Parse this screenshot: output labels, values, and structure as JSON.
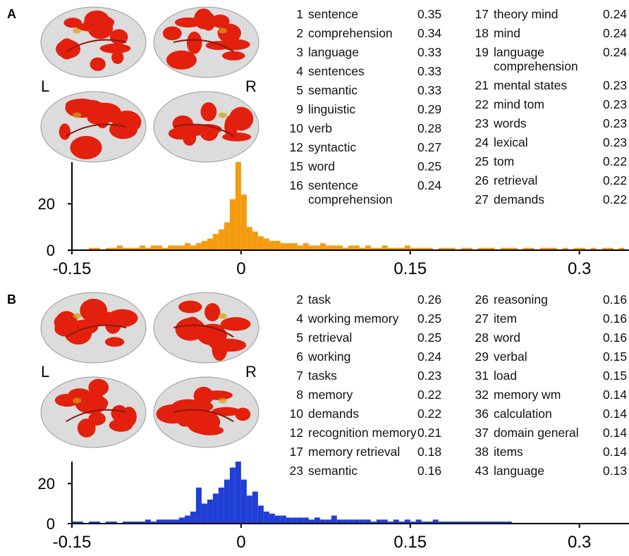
{
  "panels": [
    {
      "label": "A",
      "hemispheres": [
        "L",
        "R"
      ],
      "columns": [
        [
          {
            "rank": 1,
            "term": "sentence",
            "value": 0.35
          },
          {
            "rank": 2,
            "term": "comprehension",
            "value": 0.34
          },
          {
            "rank": 3,
            "term": "language",
            "value": 0.33
          },
          {
            "rank": 4,
            "term": "sentences",
            "value": 0.33
          },
          {
            "rank": 5,
            "term": "semantic",
            "value": 0.33
          },
          {
            "rank": 9,
            "term": "linguistic",
            "value": 0.29
          },
          {
            "rank": 10,
            "term": "verb",
            "value": 0.28
          },
          {
            "rank": 12,
            "term": "syntactic",
            "value": 0.27
          },
          {
            "rank": 15,
            "term": "word",
            "value": 0.25
          },
          {
            "rank": 16,
            "term": "sentence comprehension",
            "value": 0.24
          }
        ],
        [
          {
            "rank": 17,
            "term": "theory mind",
            "value": 0.24
          },
          {
            "rank": 18,
            "term": "mind",
            "value": 0.24
          },
          {
            "rank": 19,
            "term": "language comprehension",
            "value": 0.24
          },
          {
            "rank": 21,
            "term": "mental states",
            "value": 0.23
          },
          {
            "rank": 22,
            "term": "mind tom",
            "value": 0.23
          },
          {
            "rank": 23,
            "term": "words",
            "value": 0.23
          },
          {
            "rank": 24,
            "term": "lexical",
            "value": 0.23
          },
          {
            "rank": 25,
            "term": "tom",
            "value": 0.22
          },
          {
            "rank": 26,
            "term": "retrieval",
            "value": 0.22
          },
          {
            "rank": 27,
            "term": "demands",
            "value": 0.22
          }
        ]
      ]
    },
    {
      "label": "B",
      "hemispheres": [
        "L",
        "R"
      ],
      "columns": [
        [
          {
            "rank": 2,
            "term": "task",
            "value": 0.26
          },
          {
            "rank": 4,
            "term": "working memory",
            "value": 0.25
          },
          {
            "rank": 5,
            "term": "retrieval",
            "value": 0.25
          },
          {
            "rank": 6,
            "term": "working",
            "value": 0.24
          },
          {
            "rank": 7,
            "term": "tasks",
            "value": 0.23
          },
          {
            "rank": 8,
            "term": "memory",
            "value": 0.22
          },
          {
            "rank": 10,
            "term": "demands",
            "value": 0.22
          },
          {
            "rank": 12,
            "term": "recognition memory",
            "value": 0.21
          },
          {
            "rank": 17,
            "term": "memory retrieval",
            "value": 0.18
          },
          {
            "rank": 23,
            "term": "semantic",
            "value": 0.16
          }
        ],
        [
          {
            "rank": 26,
            "term": "reasoning",
            "value": 0.16
          },
          {
            "rank": 27,
            "term": "item",
            "value": 0.16
          },
          {
            "rank": 28,
            "term": "word",
            "value": 0.16
          },
          {
            "rank": 29,
            "term": "verbal",
            "value": 0.15
          },
          {
            "rank": 31,
            "term": "load",
            "value": 0.15
          },
          {
            "rank": 32,
            "term": "memory wm",
            "value": 0.14
          },
          {
            "rank": 36,
            "term": "calculation",
            "value": 0.14
          },
          {
            "rank": 37,
            "term": "domain general",
            "value": 0.14
          },
          {
            "rank": 38,
            "term": "items",
            "value": 0.14
          },
          {
            "rank": 43,
            "term": "language",
            "value": 0.13
          }
        ]
      ]
    }
  ],
  "chart_data": [
    {
      "type": "histogram",
      "color": "#f59b0f",
      "bins": [
        -0.15,
        -0.145,
        -0.14,
        -0.135,
        -0.13,
        -0.125,
        -0.12,
        -0.115,
        -0.11,
        -0.105,
        -0.1,
        -0.095,
        -0.09,
        -0.085,
        -0.08,
        -0.075,
        -0.07,
        -0.065,
        -0.06,
        -0.055,
        -0.05,
        -0.045,
        -0.04,
        -0.035,
        -0.03,
        -0.025,
        -0.02,
        -0.015,
        -0.01,
        -0.005,
        0,
        0.005,
        0.01,
        0.015,
        0.02,
        0.025,
        0.03,
        0.035,
        0.04,
        0.045,
        0.05,
        0.055,
        0.06,
        0.065,
        0.07,
        0.075,
        0.08,
        0.085,
        0.09,
        0.095,
        0.1,
        0.105,
        0.11,
        0.115,
        0.12,
        0.125,
        0.13,
        0.135,
        0.14,
        0.145,
        0.15,
        0.155,
        0.16,
        0.165,
        0.17,
        0.175,
        0.18,
        0.185,
        0.19,
        0.195,
        0.2,
        0.205,
        0.21,
        0.215,
        0.22,
        0.225,
        0.23,
        0.235,
        0.24,
        0.245,
        0.25,
        0.255,
        0.26,
        0.265,
        0.27,
        0.275,
        0.28,
        0.285,
        0.29,
        0.295,
        0.3,
        0.305,
        0.31,
        0.315,
        0.32,
        0.325,
        0.33,
        0.335,
        0.34
      ],
      "values": [
        0,
        0,
        0,
        1,
        1,
        0,
        1,
        1,
        2,
        1,
        1,
        1,
        2,
        1,
        2,
        2,
        1,
        2,
        2,
        2,
        3,
        2,
        3,
        4,
        5,
        7,
        9,
        12,
        22,
        38,
        24,
        10,
        8,
        6,
        5,
        4,
        4,
        3,
        3,
        3,
        2,
        3,
        2,
        2,
        3,
        2,
        2,
        2,
        1,
        2,
        2,
        1,
        2,
        1,
        1,
        2,
        1,
        1,
        1,
        2,
        1,
        1,
        1,
        1,
        0,
        1,
        1,
        1,
        0,
        1,
        1,
        0,
        1,
        1,
        1,
        0,
        1,
        1,
        1,
        0,
        1,
        1,
        0,
        1,
        1,
        1,
        0,
        1,
        0,
        1,
        1,
        0,
        1,
        0,
        1,
        1,
        0,
        1
      ],
      "xlim": [
        -0.15,
        0.344
      ],
      "xticks": [
        -0.15,
        0,
        0.15,
        0.3
      ],
      "ylim": [
        0,
        38
      ],
      "yticks": [
        0,
        20
      ]
    },
    {
      "type": "histogram",
      "color": "#1f3fd6",
      "bins": [
        -0.15,
        -0.145,
        -0.14,
        -0.135,
        -0.13,
        -0.125,
        -0.12,
        -0.115,
        -0.11,
        -0.105,
        -0.1,
        -0.095,
        -0.09,
        -0.085,
        -0.08,
        -0.075,
        -0.07,
        -0.065,
        -0.06,
        -0.055,
        -0.05,
        -0.045,
        -0.04,
        -0.035,
        -0.03,
        -0.025,
        -0.02,
        -0.015,
        -0.01,
        -0.005,
        0,
        0.005,
        0.01,
        0.015,
        0.02,
        0.025,
        0.03,
        0.035,
        0.04,
        0.045,
        0.05,
        0.055,
        0.06,
        0.065,
        0.07,
        0.075,
        0.08,
        0.085,
        0.09,
        0.095,
        0.1,
        0.105,
        0.11,
        0.115,
        0.12,
        0.125,
        0.13,
        0.135,
        0.14,
        0.145,
        0.15,
        0.155,
        0.16,
        0.165,
        0.17,
        0.175,
        0.18,
        0.185,
        0.19,
        0.195,
        0.2,
        0.205,
        0.21,
        0.215,
        0.22,
        0.225,
        0.23,
        0.235,
        0.24,
        0.245,
        0.25,
        0.255,
        0.26,
        0.265,
        0.27,
        0.275,
        0.28,
        0.285,
        0.29,
        0.295,
        0.3,
        0.305,
        0.31,
        0.315,
        0.32,
        0.325,
        0.33,
        0.335,
        0.34
      ],
      "values": [
        1,
        1,
        0,
        1,
        1,
        0,
        1,
        1,
        0,
        1,
        1,
        1,
        1,
        2,
        1,
        2,
        2,
        2,
        2,
        3,
        4,
        6,
        18,
        10,
        12,
        15,
        18,
        22,
        28,
        31,
        22,
        14,
        16,
        9,
        6,
        5,
        4,
        4,
        3,
        3,
        3,
        3,
        2,
        3,
        2,
        2,
        4,
        2,
        2,
        2,
        2,
        2,
        2,
        1,
        2,
        2,
        1,
        2,
        1,
        2,
        1,
        2,
        1,
        1,
        2,
        1,
        1,
        1,
        1,
        1,
        1,
        1,
        1,
        1,
        1,
        1,
        1,
        1,
        0,
        0,
        0,
        0,
        0,
        0,
        0,
        0,
        0,
        0,
        0,
        0,
        0,
        0,
        0,
        0,
        0,
        0,
        0,
        0
      ],
      "xlim": [
        -0.15,
        0.344
      ],
      "xticks": [
        -0.15,
        0,
        0.15,
        0.3
      ],
      "ylim": [
        0,
        31
      ],
      "yticks": [
        0,
        20
      ]
    }
  ]
}
